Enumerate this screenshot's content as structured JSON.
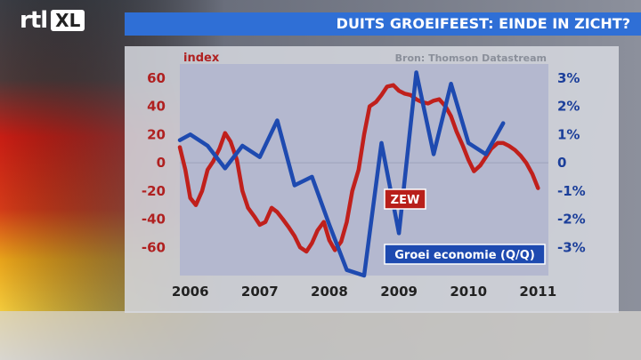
{
  "brand": {
    "rtl": "rtl",
    "xl": "XL"
  },
  "header": {
    "title": "DUITS GROEIFEEST: EINDE IN ZICHT?"
  },
  "colors": {
    "zew": "#c0201c",
    "groei": "#1e4ab0",
    "title_bar": "#2f6fd6"
  },
  "chart_data": {
    "type": "line",
    "left_axis_label": "index",
    "source": "Bron: Thomson Datastream",
    "x_ticks": [
      "2006",
      "2007",
      "2008",
      "2009",
      "2010",
      "2011"
    ],
    "y_left_ticks": [
      "60",
      "40",
      "20",
      "0",
      "-20",
      "-40",
      "-60"
    ],
    "y_left_values": [
      60,
      40,
      20,
      0,
      -20,
      -40,
      -60
    ],
    "y_right_ticks": [
      "3%",
      "2%",
      "1%",
      "0",
      "-1%",
      "-2%",
      "-3%"
    ],
    "y_right_values": [
      3,
      2,
      1,
      0,
      -1,
      -2,
      -3
    ],
    "ylim_left": [
      -80,
      70
    ],
    "ylim_right": [
      -4,
      3.5
    ],
    "xlim": [
      2005.85,
      2011.15
    ],
    "series": [
      {
        "name": "ZEW",
        "axis": "left",
        "color": "#c0201c",
        "x": [
          2005.85,
          2005.93,
          2006.0,
          2006.08,
          2006.17,
          2006.25,
          2006.33,
          2006.42,
          2006.5,
          2006.58,
          2006.67,
          2006.75,
          2006.83,
          2006.92,
          2007.0,
          2007.08,
          2007.17,
          2007.25,
          2007.33,
          2007.42,
          2007.5,
          2007.58,
          2007.67,
          2007.75,
          2007.83,
          2007.92,
          2008.0,
          2008.08,
          2008.17,
          2008.25,
          2008.33,
          2008.42,
          2008.5,
          2008.58,
          2008.67,
          2008.75,
          2008.83,
          2008.92,
          2009.0,
          2009.08,
          2009.17,
          2009.25,
          2009.33,
          2009.42,
          2009.5,
          2009.58,
          2009.67,
          2009.75,
          2009.83,
          2009.92,
          2010.0,
          2010.08,
          2010.17,
          2010.25,
          2010.33,
          2010.42,
          2010.5,
          2010.58,
          2010.67,
          2010.75,
          2010.83,
          2010.92,
          2011.0
        ],
        "y": [
          11,
          -5,
          -25,
          -30,
          -20,
          -5,
          1,
          10,
          21,
          15,
          2,
          -20,
          -32,
          -38,
          -44,
          -42,
          -32,
          -35,
          -40,
          -46,
          -52,
          -60,
          -63,
          -57,
          -48,
          -42,
          -55,
          -62,
          -56,
          -42,
          -20,
          -5,
          20,
          40,
          43,
          48,
          54,
          55,
          51,
          49,
          48,
          45,
          43,
          42,
          44,
          45,
          40,
          33,
          22,
          12,
          2,
          -6,
          -2,
          4,
          10,
          14,
          14,
          12,
          9,
          5,
          0,
          -8,
          -18
        ]
      },
      {
        "name": "Groei economie (Q/Q)",
        "axis": "right",
        "color": "#1e4ab0",
        "x": [
          2005.85,
          2006.0,
          2006.25,
          2006.5,
          2006.75,
          2007.0,
          2007.25,
          2007.5,
          2007.75,
          2008.0,
          2008.25,
          2008.5,
          2008.75,
          2009.0,
          2009.25,
          2009.5,
          2009.75,
          2010.0,
          2010.25,
          2010.5
        ],
        "y": [
          0.8,
          1.0,
          0.6,
          -0.2,
          0.6,
          0.2,
          1.5,
          -0.8,
          -0.5,
          -2.2,
          -3.8,
          -4.0,
          0.7,
          -2.5,
          3.2,
          0.3,
          2.8,
          0.7,
          0.3,
          1.4
        ]
      }
    ]
  }
}
